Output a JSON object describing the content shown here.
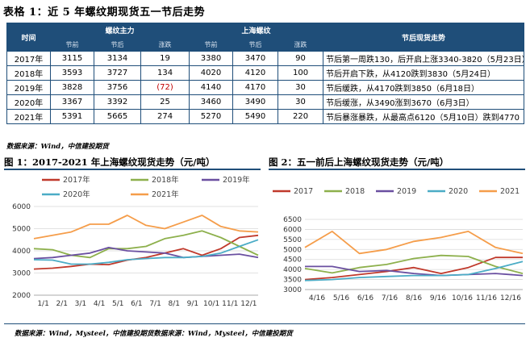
{
  "title": "表格 1：近 5 年螺纹期现货五一节后走势",
  "table": {
    "col_year": "时间",
    "group_futures": "螺纹主力",
    "group_spot": "上海螺纹",
    "group_note": "节后现货走势",
    "sub_headers": [
      "节前",
      "节后",
      "涨跌",
      "节前",
      "节后",
      "涨跌"
    ],
    "rows": [
      {
        "year": "2017年",
        "f_pre": "3115",
        "f_post": "3134",
        "f_chg": "19",
        "s_pre": "3380",
        "s_post": "3470",
        "s_chg": "90",
        "note": "节后第一周跌130，后开启上涨3340-3820（5月23日）"
      },
      {
        "year": "2018年",
        "f_pre": "3593",
        "f_post": "3727",
        "f_chg": "134",
        "s_pre": "4020",
        "s_post": "4120",
        "s_chg": "100",
        "note": "节后开启下跌，从4120跌到3830（5月24日）"
      },
      {
        "year": "2019年",
        "f_pre": "3828",
        "f_post": "3756",
        "f_chg": "(72)",
        "s_pre": "4140",
        "s_post": "4170",
        "s_chg": "30",
        "note": "节后缓跌，从4170跌到3850（6月18日）"
      },
      {
        "year": "2020年",
        "f_pre": "3367",
        "f_post": "3392",
        "f_chg": "25",
        "s_pre": "3460",
        "s_post": "3490",
        "s_chg": "30",
        "note": "节后缓涨，从3490涨到3670（6月3日）"
      },
      {
        "year": "2021年",
        "f_pre": "5391",
        "f_post": "5665",
        "f_chg": "274",
        "s_pre": "5270",
        "s_post": "5490",
        "s_chg": "220",
        "note": "节后暴涨暴跌，从最高点6120（5月10日）跌到4770（5月27日）"
      }
    ]
  },
  "source1": "数据来源：Wind，中信建投期货",
  "fig1_title": "图 1：2017-2021 年上海螺纹现货走势（元/吨）",
  "fig2_title": "图 2：五一前后上海螺纹现货走势（元/吨）",
  "source2": "数据来源：Wind，Mysteel，中信建投期货数据来源：Wind，Mysteel，中信建投期货",
  "colors": {
    "2017": "#c0392b",
    "2018": "#8db04c",
    "2019": "#6a4fa0",
    "2020": "#4bacc6",
    "2021": "#f59d4a"
  },
  "chart_data": [
    {
      "type": "line",
      "title": "图 1：2017-2021 年上海螺纹现货走势（元/吨）",
      "x_tick_labels": [
        "1/1",
        "2/1",
        "3/1",
        "4/1",
        "5/1",
        "6/1",
        "7/1",
        "8/1",
        "9/1",
        "10/1",
        "11/1",
        "12/1"
      ],
      "ylim": [
        2000,
        6000
      ],
      "y_ticks": [
        "2000",
        "3000",
        "4000",
        "5000",
        "6000"
      ],
      "legend": [
        "2017年",
        "2018年",
        "2019年",
        "2020年",
        "2021年"
      ],
      "series": [
        {
          "name": "2017年",
          "values": [
            3180,
            3220,
            3300,
            3400,
            3380,
            3580,
            3700,
            3900,
            4100,
            3800,
            4100,
            4600,
            4700
          ]
        },
        {
          "name": "2018年",
          "values": [
            4100,
            4050,
            3800,
            3700,
            4100,
            4100,
            4200,
            4550,
            4700,
            4900,
            4600,
            4200,
            3800
          ]
        },
        {
          "name": "2019年",
          "values": [
            3650,
            3700,
            3800,
            3900,
            4150,
            4000,
            3950,
            3900,
            3700,
            3750,
            3800,
            3850,
            3700
          ]
        },
        {
          "name": "2020年",
          "values": [
            3600,
            3580,
            3400,
            3400,
            3480,
            3600,
            3650,
            3700,
            3700,
            3750,
            3900,
            4200,
            4500
          ]
        },
        {
          "name": "2021年",
          "values": [
            4550,
            4700,
            4850,
            5200,
            5200,
            5600,
            5150,
            5000,
            5300,
            5600,
            5100,
            4900,
            4850
          ]
        }
      ]
    },
    {
      "type": "line",
      "title": "图 2：五一前后上海螺纹现货走势（元/吨）",
      "x_tick_labels": [
        "4/16",
        "5/16",
        "6/16",
        "7/16",
        "8/16",
        "9/16",
        "10/16",
        "11/16",
        "12/16"
      ],
      "ylim": [
        3000,
        6500
      ],
      "y_ticks": [
        "3000",
        "3500",
        "4000",
        "4500",
        "5000",
        "5500",
        "6000",
        "6500"
      ],
      "legend": [
        "2017",
        "2018",
        "2019",
        "2020",
        "2021"
      ],
      "series": [
        {
          "name": "2017",
          "values": [
            3500,
            3600,
            3750,
            3900,
            4100,
            3800,
            4100,
            4600,
            4600
          ]
        },
        {
          "name": "2018",
          "values": [
            4050,
            3830,
            4100,
            4250,
            4550,
            4700,
            4650,
            4150,
            3800
          ]
        },
        {
          "name": "2019",
          "values": [
            4150,
            4150,
            3900,
            3950,
            3800,
            3700,
            3750,
            3800,
            3700
          ]
        },
        {
          "name": "2020",
          "values": [
            3450,
            3500,
            3600,
            3650,
            3700,
            3700,
            3750,
            4050,
            4400
          ]
        },
        {
          "name": "2021",
          "values": [
            5100,
            5900,
            4800,
            5000,
            5400,
            5600,
            5900,
            5100,
            4800
          ]
        }
      ]
    }
  ]
}
